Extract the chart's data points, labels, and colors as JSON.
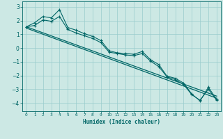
{
  "xlabel": "Humidex (Indice chaleur)",
  "bg_color": "#cce8e4",
  "grid_color": "#99cccc",
  "line_color": "#006666",
  "xlim": [
    -0.5,
    23.5
  ],
  "ylim": [
    -4.6,
    3.4
  ],
  "xticks": [
    0,
    1,
    2,
    3,
    4,
    5,
    6,
    7,
    8,
    9,
    10,
    11,
    12,
    13,
    14,
    15,
    16,
    17,
    18,
    19,
    20,
    21,
    22,
    23
  ],
  "yticks": [
    -4,
    -3,
    -2,
    -1,
    0,
    1,
    2,
    3
  ],
  "series1_x": [
    0,
    1,
    2,
    3,
    4,
    5,
    6,
    7,
    8,
    9,
    10,
    11,
    12,
    13,
    14,
    15,
    16,
    17,
    18,
    19,
    20,
    21,
    22,
    23
  ],
  "series1_y": [
    1.55,
    1.85,
    2.3,
    2.2,
    2.8,
    1.5,
    1.3,
    1.05,
    0.85,
    0.55,
    -0.2,
    -0.35,
    -0.4,
    -0.45,
    -0.25,
    -0.85,
    -1.2,
    -2.05,
    -2.2,
    -2.55,
    -3.35,
    -3.85,
    -2.85,
    -3.75
  ],
  "series2_x": [
    0,
    1,
    2,
    3,
    4,
    5,
    6,
    7,
    8,
    9,
    10,
    11,
    12,
    13,
    14,
    15,
    16,
    17,
    18,
    19,
    20,
    21,
    22,
    23
  ],
  "series2_y": [
    1.55,
    1.65,
    2.05,
    1.95,
    2.3,
    1.35,
    1.1,
    0.9,
    0.7,
    0.4,
    -0.3,
    -0.4,
    -0.5,
    -0.55,
    -0.4,
    -0.95,
    -1.35,
    -2.1,
    -2.3,
    -2.65,
    -3.4,
    -3.8,
    -3.0,
    -3.8
  ],
  "trend1_x": [
    0,
    23
  ],
  "trend1_y": [
    1.55,
    -3.5
  ],
  "trend2_x": [
    0,
    23
  ],
  "trend2_y": [
    1.45,
    -3.65
  ]
}
